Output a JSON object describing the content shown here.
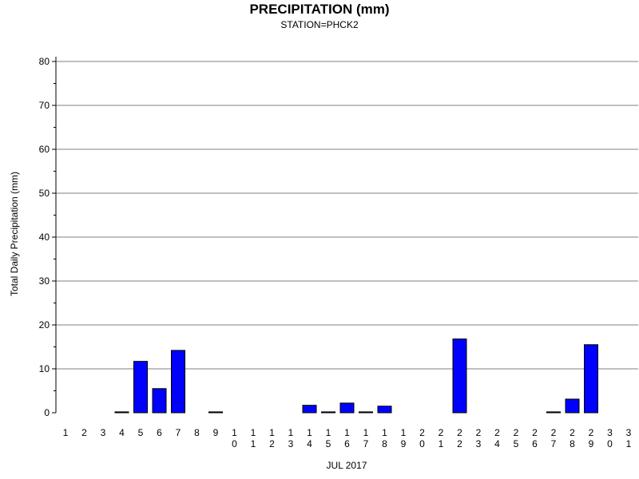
{
  "chart_data": {
    "type": "bar",
    "title": "PRECIPITATION (mm)",
    "subtitle": "STATION=PHCK2",
    "xlabel": "JUL 2017",
    "ylabel": "Total Daily Precipitation (mm)",
    "ylim": [
      0,
      80
    ],
    "yticks": [
      0,
      10,
      20,
      30,
      40,
      50,
      60,
      70,
      80
    ],
    "grid": true,
    "bar_color": "#0000ff",
    "categories": [
      "1",
      "2",
      "3",
      "4",
      "5",
      "6",
      "7",
      "8",
      "9",
      "10",
      "11",
      "12",
      "13",
      "14",
      "15",
      "16",
      "17",
      "18",
      "19",
      "20",
      "21",
      "22",
      "23",
      "24",
      "25",
      "26",
      "27",
      "28",
      "29",
      "30",
      "31"
    ],
    "values": [
      0,
      0,
      0,
      0.2,
      11.7,
      5.5,
      14.2,
      0,
      0.2,
      0,
      0,
      0,
      0,
      1.7,
      0.2,
      2.2,
      0.2,
      1.5,
      0,
      0,
      0,
      16.8,
      0,
      0,
      0,
      0,
      0.2,
      3.1,
      15.5,
      0,
      0
    ]
  }
}
